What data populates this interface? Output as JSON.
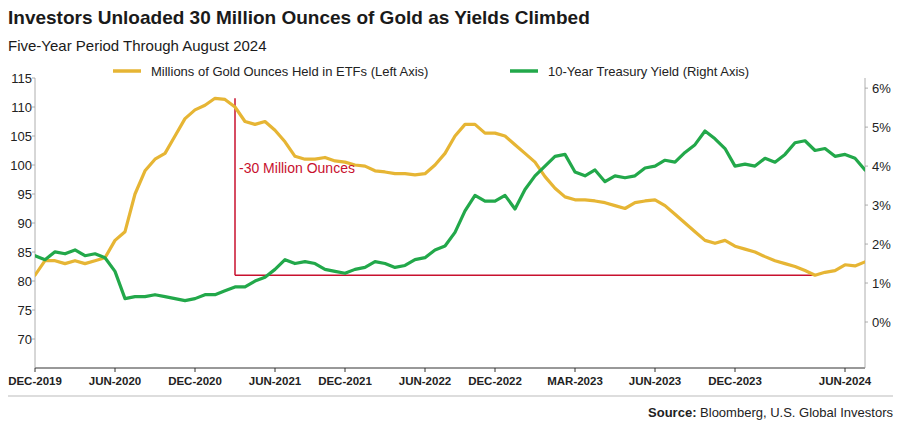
{
  "chart_data": {
    "type": "line",
    "title": "Investors Unloaded 30 Million Ounces of Gold as Yields Climbed",
    "subtitle": "Five-Year Period Through August 2024",
    "source": "Source: Bloomberg, U.S. Global Investors",
    "categories": [
      "DEC-2019",
      null,
      null,
      null,
      null,
      null,
      null,
      null,
      "JUN-2020",
      null,
      null,
      null,
      null,
      null,
      null,
      null,
      "DEC-2020",
      null,
      null,
      null,
      null,
      null,
      null,
      null,
      "JUN-2021",
      null,
      null,
      null,
      null,
      null,
      null,
      "DEC-2021",
      null,
      null,
      null,
      null,
      null,
      null,
      null,
      "JUN-2022",
      null,
      null,
      null,
      null,
      null,
      null,
      "DEC-2022",
      null,
      null,
      null,
      null,
      null,
      null,
      null,
      "MAR-2023",
      null,
      null,
      null,
      null,
      null,
      null,
      null,
      "JUN-2023",
      null,
      null,
      null,
      null,
      null,
      null,
      null,
      "DEC-2023",
      null,
      null,
      null,
      null,
      null,
      null,
      null,
      null,
      null,
      null,
      "JUN-2024",
      null,
      null
    ],
    "series": [
      {
        "name": "Millions of Gold Ounces Held in ETFs (Left Axis)",
        "color": "#e6b534",
        "axis": "y",
        "values": [
          81,
          83.5,
          83.5,
          83,
          83.5,
          83,
          83.5,
          84,
          87,
          88.5,
          95,
          99,
          101,
          102,
          105,
          108,
          109.5,
          110.3,
          111.5,
          111.3,
          110,
          107.5,
          107,
          107.5,
          106,
          104,
          101.5,
          101,
          101,
          101.3,
          100.7,
          100.5,
          100,
          99.8,
          99,
          98.8,
          98.5,
          98.5,
          98.3,
          98.5,
          100,
          102,
          105,
          107,
          107,
          105.5,
          105.5,
          105,
          103.5,
          102,
          100.5,
          98,
          96,
          94.5,
          94,
          94,
          93.8,
          93.5,
          93,
          92.5,
          93.5,
          93.8,
          94,
          93,
          91.5,
          90,
          88.5,
          87,
          86.5,
          87,
          86,
          85.5,
          85,
          84.2,
          83.5,
          83,
          82.5,
          81.8,
          81,
          81.5,
          81.8,
          82.8,
          82.6,
          83.3
        ]
      },
      {
        "name": "10-Year Treasury Yield (Right Axis)",
        "color": "#22a84a",
        "axis": "y2",
        "values": [
          1.7,
          1.6,
          1.8,
          1.75,
          1.85,
          1.7,
          1.75,
          1.65,
          1.3,
          0.6,
          0.65,
          0.65,
          0.7,
          0.65,
          0.6,
          0.55,
          0.6,
          0.7,
          0.7,
          0.8,
          0.9,
          0.9,
          1.05,
          1.15,
          1.35,
          1.6,
          1.5,
          1.55,
          1.5,
          1.35,
          1.3,
          1.25,
          1.35,
          1.4,
          1.55,
          1.5,
          1.4,
          1.45,
          1.6,
          1.65,
          1.85,
          1.95,
          2.3,
          2.85,
          3.25,
          3.1,
          3.1,
          3.25,
          2.9,
          3.4,
          3.75,
          4.0,
          4.25,
          4.3,
          3.85,
          3.75,
          3.9,
          3.6,
          3.75,
          3.7,
          3.75,
          3.95,
          4.0,
          4.15,
          4.1,
          4.35,
          4.55,
          4.9,
          4.7,
          4.45,
          4.0,
          4.05,
          4.0,
          4.2,
          4.1,
          4.3,
          4.6,
          4.65,
          4.4,
          4.45,
          4.25,
          4.3,
          4.2,
          3.9
        ]
      }
    ],
    "ylim": [
      65,
      115
    ],
    "yticks": [
      70,
      75,
      80,
      85,
      90,
      95,
      100,
      105,
      110,
      115
    ],
    "y2lim": [
      -1.18,
      6.26
    ],
    "y2ticks": [
      {
        "value": 0,
        "label": "0%"
      },
      {
        "value": 1,
        "label": "1%"
      },
      {
        "value": 2,
        "label": "2%"
      },
      {
        "value": 3,
        "label": "3%"
      },
      {
        "value": 4,
        "label": "4%"
      },
      {
        "value": 5,
        "label": "5%"
      },
      {
        "value": 6,
        "label": "6%"
      }
    ],
    "grid": false,
    "legend": "top",
    "annotations": [
      {
        "text": "-30 Million Ounces",
        "color": "#c8102e",
        "y_top": 111.5,
        "y_bottom": 81,
        "from_index": 20,
        "to_index": 78
      }
    ]
  }
}
